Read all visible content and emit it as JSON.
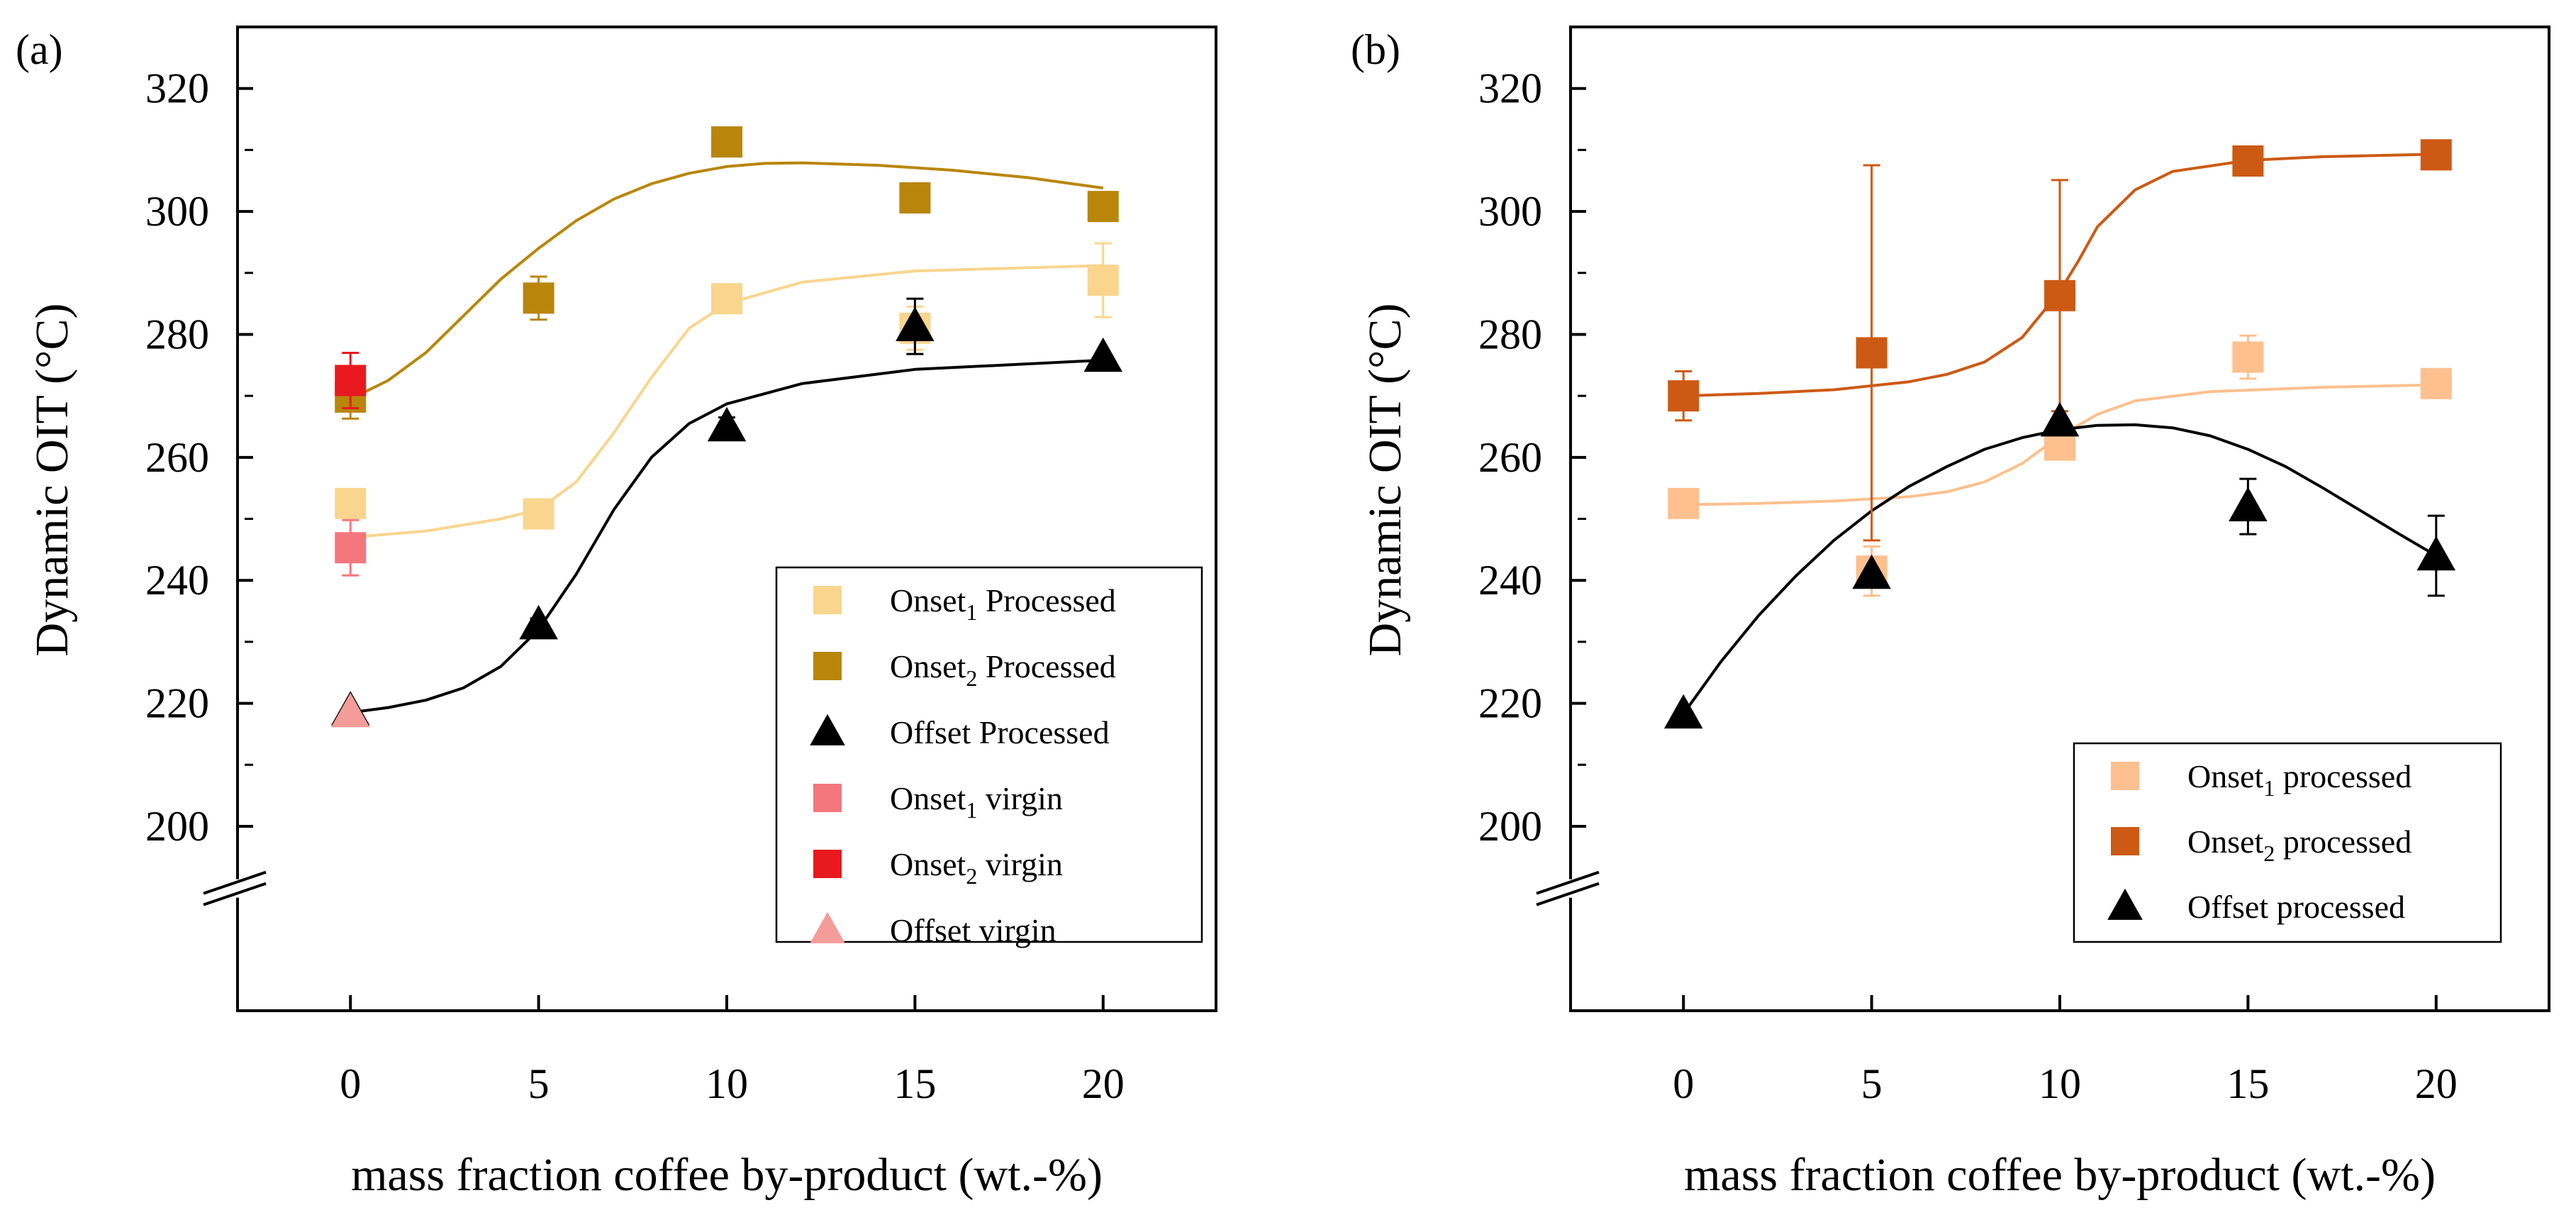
{
  "chart_data": [
    {
      "type": "scatter",
      "panel_label": "(a)",
      "xlabel": "mass fraction coffee by-product (wt.-%)",
      "ylabel": "Dynamic OIT (°C)",
      "xlim": [
        -3,
        23
      ],
      "ylim": [
        170,
        330
      ],
      "axis_break_at": 190,
      "xticks": [
        0,
        5,
        10,
        15,
        20
      ],
      "xtick_labels": [
        "0",
        "5",
        "10",
        "15",
        "20"
      ],
      "yticks": [
        200,
        220,
        240,
        260,
        280,
        300,
        320
      ],
      "ytick_labels": [
        "200",
        "220",
        "240",
        "260",
        "280",
        "300",
        "320"
      ],
      "legend_position": "bottom-right",
      "series": [
        {
          "name": "Onset1 Processed",
          "legend_main": "Onset",
          "legend_sub": "1",
          "legend_tail": " Processed",
          "marker": "square",
          "color": "#F9D58E",
          "x": [
            0,
            5,
            10,
            15,
            20
          ],
          "y": [
            252.5,
            250.8,
            285.8,
            281.0,
            288.8
          ],
          "err": [
            2.0,
            1.5,
            1.5,
            3.5,
            6.0
          ],
          "fit": [
            [
              0,
              247
            ],
            [
              2,
              248
            ],
            [
              4,
              250
            ],
            [
              5,
              251.5
            ],
            [
              6,
              256
            ],
            [
              7,
              264
            ],
            [
              8,
              273
            ],
            [
              9,
              281
            ],
            [
              10,
              285
            ],
            [
              12,
              288.5
            ],
            [
              15,
              290.3
            ],
            [
              20,
              291.2
            ]
          ]
        },
        {
          "name": "Onset2 Processed",
          "legend_main": "Onset",
          "legend_sub": "2",
          "legend_tail": " Processed",
          "marker": "square",
          "color": "#B8860B",
          "x": [
            0,
            5,
            10,
            15,
            20
          ],
          "y": [
            269.8,
            285.9,
            311.3,
            302.2,
            300.8
          ],
          "err": [
            3.5,
            3.5,
            2.0,
            1.5,
            1.5
          ],
          "fit": [
            [
              0,
              269.5
            ],
            [
              1,
              272.5
            ],
            [
              2,
              277
            ],
            [
              3,
              283
            ],
            [
              4,
              289
            ],
            [
              5,
              294
            ],
            [
              6,
              298.5
            ],
            [
              7,
              302
            ],
            [
              8,
              304.5
            ],
            [
              9,
              306.2
            ],
            [
              10,
              307.3
            ],
            [
              11,
              307.8
            ],
            [
              12,
              307.9
            ],
            [
              14,
              307.5
            ],
            [
              16,
              306.7
            ],
            [
              18,
              305.5
            ],
            [
              20,
              303.8
            ]
          ]
        },
        {
          "name": "Offset Processed",
          "legend_main": "Offset Processed",
          "legend_sub": "",
          "legend_tail": "",
          "marker": "triangle",
          "color": "#000000",
          "x": [
            0,
            5,
            10,
            15,
            20
          ],
          "y": [
            218.8,
            232.8,
            265.0,
            281.3,
            276.3
          ],
          "err": [
            0,
            1.0,
            1.5,
            4.5,
            0
          ],
          "fit": [
            [
              0,
              218.5
            ],
            [
              1,
              219.3
            ],
            [
              2,
              220.5
            ],
            [
              3,
              222.5
            ],
            [
              4,
              226
            ],
            [
              5,
              232
            ],
            [
              6,
              241
            ],
            [
              7,
              251.5
            ],
            [
              8,
              260
            ],
            [
              9,
              265.5
            ],
            [
              10,
              268.7
            ],
            [
              12,
              272
            ],
            [
              15,
              274.3
            ],
            [
              20,
              275.8
            ]
          ]
        },
        {
          "name": "Onset1 virgin",
          "legend_main": "Onset",
          "legend_sub": "1",
          "legend_tail": " virgin",
          "marker": "square",
          "color": "#F4777D",
          "x": [
            0
          ],
          "y": [
            245.3
          ],
          "err": [
            4.5
          ]
        },
        {
          "name": "Onset2 virgin",
          "legend_main": "Onset",
          "legend_sub": "2",
          "legend_tail": " virgin",
          "marker": "square",
          "color": "#E8191F",
          "x": [
            0
          ],
          "y": [
            272.5
          ],
          "err": [
            4.5
          ]
        },
        {
          "name": "Offset virgin",
          "legend_main": "Offset virgin",
          "legend_sub": "",
          "legend_tail": "",
          "marker": "triangle",
          "color": "#F49C9A",
          "x": [
            0
          ],
          "y": [
            218.5
          ],
          "err": [
            0
          ]
        }
      ]
    },
    {
      "type": "scatter",
      "panel_label": "(b)",
      "xlabel": "mass fraction coffee by-product (wt.-%)",
      "ylabel": "Dynamic OIT (°C)",
      "xlim": [
        -3,
        23
      ],
      "ylim": [
        170,
        330
      ],
      "axis_break_at": 190,
      "xticks": [
        0,
        5,
        10,
        15,
        20
      ],
      "xtick_labels": [
        "0",
        "5",
        "10",
        "15",
        "20"
      ],
      "yticks": [
        200,
        220,
        240,
        260,
        280,
        300,
        320
      ],
      "ytick_labels": [
        "200",
        "220",
        "240",
        "260",
        "280",
        "300",
        "320"
      ],
      "legend_position": "bottom-right",
      "series": [
        {
          "name": "Onset1 processed",
          "legend_main": "Onset",
          "legend_sub": "1",
          "legend_tail": " processed",
          "marker": "square",
          "color": "#FDC08E",
          "x": [
            0,
            5,
            10,
            15,
            20
          ],
          "y": [
            252.5,
            241.5,
            262.0,
            276.3,
            272.0
          ],
          "err": [
            0,
            4.0,
            0,
            3.5,
            0
          ],
          "fit": [
            [
              0,
              252.3
            ],
            [
              2,
              252.5
            ],
            [
              4,
              252.9
            ],
            [
              6,
              253.6
            ],
            [
              7,
              254.4
            ],
            [
              8,
              256
            ],
            [
              9,
              259
            ],
            [
              10,
              263.5
            ],
            [
              11,
              267
            ],
            [
              12,
              269.2
            ],
            [
              14,
              270.7
            ],
            [
              17,
              271.4
            ],
            [
              20,
              271.8
            ]
          ]
        },
        {
          "name": "Onset2 processed",
          "legend_main": "Onset",
          "legend_sub": "2",
          "legend_tail": " processed",
          "marker": "square",
          "color": "#CC5A14",
          "x": [
            0,
            5,
            10,
            15,
            20
          ],
          "y": [
            270.0,
            277.0,
            286.3,
            308.2,
            309.2
          ],
          "err": [
            4.0,
            30.5,
            18.8,
            1.5,
            0
          ],
          "fit": [
            [
              0,
              270
            ],
            [
              2,
              270.4
            ],
            [
              4,
              271
            ],
            [
              6,
              272.3
            ],
            [
              7,
              273.5
            ],
            [
              8,
              275.5
            ],
            [
              9,
              279.5
            ],
            [
              10,
              287
            ],
            [
              10.5,
              292
            ],
            [
              11,
              297.5
            ],
            [
              12,
              303.5
            ],
            [
              13,
              306.5
            ],
            [
              15,
              308.3
            ],
            [
              17,
              308.9
            ],
            [
              20,
              309.3
            ]
          ]
        },
        {
          "name": "Offset processed",
          "legend_main": "Offset processed",
          "legend_sub": "",
          "legend_tail": "",
          "marker": "triangle",
          "color": "#000000",
          "x": [
            0,
            5,
            10,
            15,
            20
          ],
          "y": [
            218.3,
            241.0,
            265.8,
            252.0,
            244.0
          ],
          "err": [
            0,
            0,
            0,
            4.5,
            6.5
          ],
          "fit": [
            [
              0,
              218.3
            ],
            [
              1,
              226.8
            ],
            [
              2,
              234.3
            ],
            [
              3,
              240.8
            ],
            [
              4,
              246.5
            ],
            [
              5,
              251.3
            ],
            [
              6,
              255.3
            ],
            [
              7,
              258.5
            ],
            [
              8,
              261.3
            ],
            [
              9,
              263.2
            ],
            [
              10,
              264.5
            ],
            [
              11,
              265.2
            ],
            [
              12,
              265.3
            ],
            [
              13,
              264.8
            ],
            [
              14,
              263.5
            ],
            [
              15,
              261.3
            ],
            [
              16,
              258.5
            ],
            [
              17,
              255
            ],
            [
              18,
              251.3
            ],
            [
              19,
              247.6
            ],
            [
              20,
              244
            ]
          ]
        }
      ]
    }
  ]
}
